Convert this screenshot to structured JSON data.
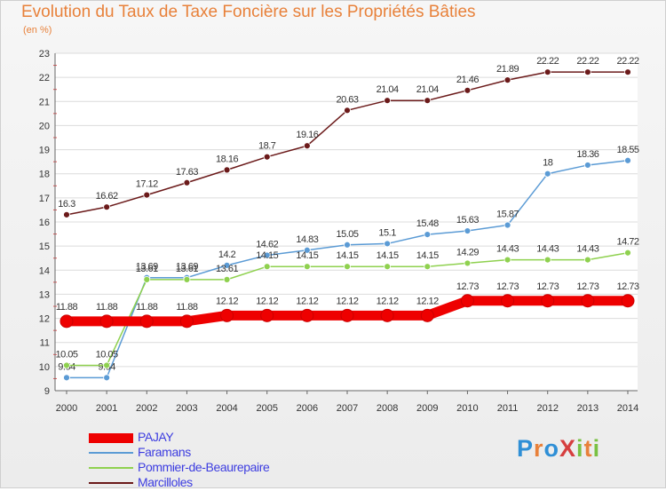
{
  "title": "Evolution du Taux de Taxe Foncière sur les Propriétés Bâties",
  "subtitle": "(en %)",
  "logo": {
    "text": "ProXiti",
    "colors": [
      "#2f8fd6",
      "#e8813a",
      "#79c143",
      "#d63f3f"
    ]
  },
  "chart_data": {
    "type": "line",
    "x": [
      "2000",
      "2001",
      "2002",
      "2003",
      "2004",
      "2005",
      "2006",
      "2007",
      "2008",
      "2009",
      "2010",
      "2011",
      "2012",
      "2013",
      "2014"
    ],
    "ylim": [
      9,
      23
    ],
    "yticks": [
      "9",
      "10",
      "11",
      "12",
      "13",
      "14",
      "15",
      "16",
      "17",
      "18",
      "19",
      "20",
      "21",
      "22",
      "23"
    ],
    "grid": "horizontal",
    "legend_position": "bottom-left",
    "series": [
      {
        "name": "Marcilloles",
        "color": "#6b1a1a",
        "values": [
          16.3,
          16.62,
          17.12,
          17.63,
          18.16,
          18.7,
          19.16,
          20.63,
          21.04,
          21.04,
          21.46,
          21.89,
          22.22,
          22.22,
          22.22
        ],
        "labels": [
          "16.3",
          "16.62",
          "17.12",
          "17.63",
          "18.16",
          "18.7",
          "19.16",
          "20.63",
          "21.04",
          "21.04",
          "21.46",
          "21.89",
          "22.22",
          "22.22",
          "22.22"
        ]
      },
      {
        "name": "Faramans",
        "color": "#5b9bd5",
        "values": [
          9.54,
          9.54,
          13.69,
          13.69,
          14.2,
          14.62,
          14.83,
          15.05,
          15.1,
          15.48,
          15.63,
          15.87,
          18,
          18.36,
          18.55
        ],
        "labels": [
          "9.54",
          "9.54",
          "13.69",
          "13.69",
          "14.2",
          "14.62",
          "14.83",
          "15.05",
          "15.1",
          "15.48",
          "15.63",
          "15.87",
          "18",
          "18.36",
          "18.55"
        ]
      },
      {
        "name": "Pommier-de-Beaurepaire",
        "color": "#8fd14f",
        "values": [
          10.05,
          10.05,
          13.61,
          13.61,
          13.61,
          14.15,
          14.15,
          14.15,
          14.15,
          14.15,
          14.29,
          14.43,
          14.43,
          14.43,
          14.72
        ],
        "labels": [
          "10.05",
          "10.05",
          "13.61",
          "13.61",
          "13.61",
          "14.15",
          "14.15",
          "14.15",
          "14.15",
          "14.15",
          "14.29",
          "14.43",
          "14.43",
          "14.43",
          "14.72"
        ]
      },
      {
        "name": "PAJAY",
        "color": "#ee0000",
        "values": [
          11.88,
          11.88,
          11.88,
          11.88,
          12.12,
          12.12,
          12.12,
          12.12,
          12.12,
          12.12,
          12.73,
          12.73,
          12.73,
          12.73,
          12.73
        ],
        "labels": [
          "11.88",
          "11.88",
          "11.88",
          "11.88",
          "12.12",
          "12.12",
          "12.12",
          "12.12",
          "12.12",
          "12.12",
          "12.73",
          "12.73",
          "12.73",
          "12.73",
          "12.73"
        ]
      }
    ]
  },
  "legend": [
    {
      "name": "PAJAY",
      "color": "#ee0000",
      "thickness": 11
    },
    {
      "name": "Faramans",
      "color": "#5b9bd5",
      "thickness": 2
    },
    {
      "name": "Pommier-de-Beaurepaire",
      "color": "#8fd14f",
      "thickness": 2
    },
    {
      "name": "Marcilloles",
      "color": "#6b1a1a",
      "thickness": 2
    }
  ]
}
